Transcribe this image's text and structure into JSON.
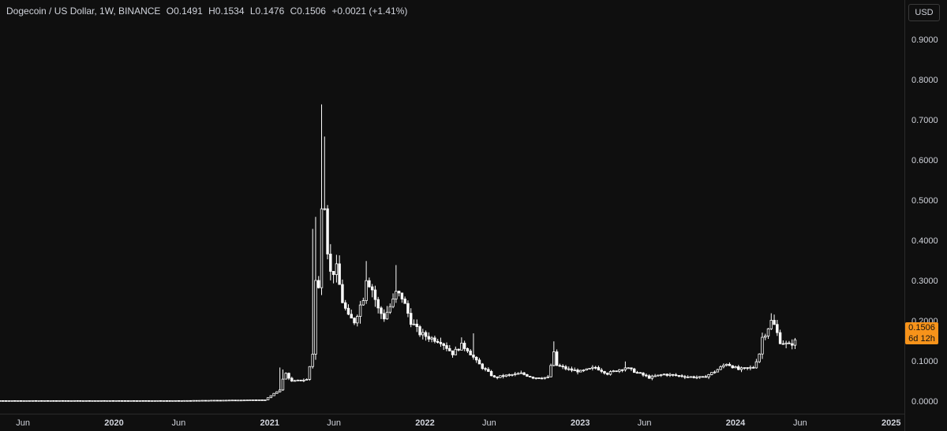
{
  "legend": {
    "symbol": "Dogecoin / US Dollar, 1W, BINANCE",
    "open": "O0.1491",
    "high": "H0.1534",
    "low": "L0.1476",
    "close": "C0.1506",
    "change": "+0.0021 (+1.41%)"
  },
  "currency": "USD",
  "last_price": {
    "value": "0.1506",
    "countdown": "6d 12h",
    "color": "#f7931a"
  },
  "colors": {
    "background": "#0f0f0f",
    "candle": "#ffffff",
    "text": "#d1d4dc"
  },
  "chart_data": {
    "type": "candlestick",
    "ylim": [
      -0.03,
      1.0
    ],
    "yticks": [
      "0.0000",
      "0.1000",
      "0.2000",
      "0.3000",
      "0.4000",
      "0.5000",
      "0.6000",
      "0.7000",
      "0.8000",
      "0.9000"
    ],
    "xticks": [
      "Jun",
      "2020",
      "Jun",
      "2021",
      "Jun",
      "2022",
      "Jun",
      "2023",
      "Jun",
      "2024",
      "Jun",
      "2025"
    ],
    "year_ticks": [
      "2020",
      "2021",
      "2022",
      "2023",
      "2024",
      "2025"
    ],
    "x_range": [
      "2019-04-08",
      "2025-02-01"
    ],
    "tick_dates": [
      "2019-06-01",
      "2020-01-01",
      "2020-06-01",
      "2021-01-01",
      "2021-06-01",
      "2022-01-01",
      "2022-06-01",
      "2023-01-01",
      "2023-06-01",
      "2024-01-01",
      "2024-06-01",
      "2025-01-01"
    ],
    "anchors": [
      [
        "2019-04-08",
        0.0025
      ],
      [
        "2020-06-01",
        0.0025
      ],
      [
        "2020-12-21",
        0.0045
      ],
      [
        "2021-01-25",
        0.03
      ],
      [
        "2021-02-01",
        0.055
      ],
      [
        "2021-02-08",
        0.07
      ],
      [
        "2021-02-22",
        0.05
      ],
      [
        "2021-03-29",
        0.055
      ],
      [
        "2021-04-12",
        0.12
      ],
      [
        "2021-04-19",
        0.3
      ],
      [
        "2021-04-26",
        0.28
      ],
      [
        "2021-05-03",
        0.5
      ],
      [
        "2021-05-10",
        0.5
      ],
      [
        "2021-05-17",
        0.38
      ],
      [
        "2021-05-24",
        0.32
      ],
      [
        "2021-06-07",
        0.33
      ],
      [
        "2021-06-21",
        0.25
      ],
      [
        "2021-07-05",
        0.21
      ],
      [
        "2021-07-19",
        0.2
      ],
      [
        "2021-08-09",
        0.26
      ],
      [
        "2021-08-16",
        0.31
      ],
      [
        "2021-08-30",
        0.28
      ],
      [
        "2021-09-13",
        0.23
      ],
      [
        "2021-09-27",
        0.21
      ],
      [
        "2021-10-18",
        0.25
      ],
      [
        "2021-10-25",
        0.27
      ],
      [
        "2021-11-08",
        0.26
      ],
      [
        "2021-11-29",
        0.2
      ],
      [
        "2021-12-20",
        0.17
      ],
      [
        "2022-01-10",
        0.16
      ],
      [
        "2022-02-07",
        0.15
      ],
      [
        "2022-03-07",
        0.12
      ],
      [
        "2022-03-28",
        0.14
      ],
      [
        "2022-04-11",
        0.13
      ],
      [
        "2022-05-02",
        0.1
      ],
      [
        "2022-05-16",
        0.085
      ],
      [
        "2022-06-13",
        0.06
      ],
      [
        "2022-07-11",
        0.065
      ],
      [
        "2022-08-15",
        0.07
      ],
      [
        "2022-09-12",
        0.06
      ],
      [
        "2022-10-17",
        0.06
      ],
      [
        "2022-10-31",
        0.12
      ],
      [
        "2022-11-07",
        0.09
      ],
      [
        "2022-12-05",
        0.08
      ],
      [
        "2023-01-02",
        0.075
      ],
      [
        "2023-02-06",
        0.085
      ],
      [
        "2023-03-06",
        0.07
      ],
      [
        "2023-04-17",
        0.085
      ],
      [
        "2023-05-15",
        0.072
      ],
      [
        "2023-06-12",
        0.06
      ],
      [
        "2023-07-17",
        0.068
      ],
      [
        "2023-08-14",
        0.065
      ],
      [
        "2023-09-11",
        0.062
      ],
      [
        "2023-10-16",
        0.06
      ],
      [
        "2023-11-13",
        0.075
      ],
      [
        "2023-12-11",
        0.095
      ],
      [
        "2024-01-08",
        0.08
      ],
      [
        "2024-02-12",
        0.085
      ],
      [
        "2024-02-26",
        0.12
      ],
      [
        "2024-03-04",
        0.16
      ],
      [
        "2024-03-11",
        0.17
      ],
      [
        "2024-03-25",
        0.2
      ],
      [
        "2024-04-01",
        0.19
      ],
      [
        "2024-04-15",
        0.15
      ],
      [
        "2024-05-06",
        0.14
      ],
      [
        "2024-05-20",
        0.15
      ]
    ],
    "spikes": [
      [
        "2021-01-25",
        0.085
      ],
      [
        "2021-02-01",
        0.08
      ],
      [
        "2021-04-12",
        0.43
      ],
      [
        "2021-04-19",
        0.46
      ],
      [
        "2021-05-03",
        0.74
      ],
      [
        "2021-05-10",
        0.66
      ],
      [
        "2021-08-16",
        0.35
      ],
      [
        "2021-10-25",
        0.34
      ],
      [
        "2022-03-28",
        0.16
      ],
      [
        "2022-04-25",
        0.17
      ],
      [
        "2022-10-31",
        0.15
      ],
      [
        "2022-11-07",
        0.13
      ],
      [
        "2023-04-17",
        0.1
      ],
      [
        "2024-03-25",
        0.22
      ],
      [
        "2024-04-01",
        0.21
      ]
    ]
  }
}
